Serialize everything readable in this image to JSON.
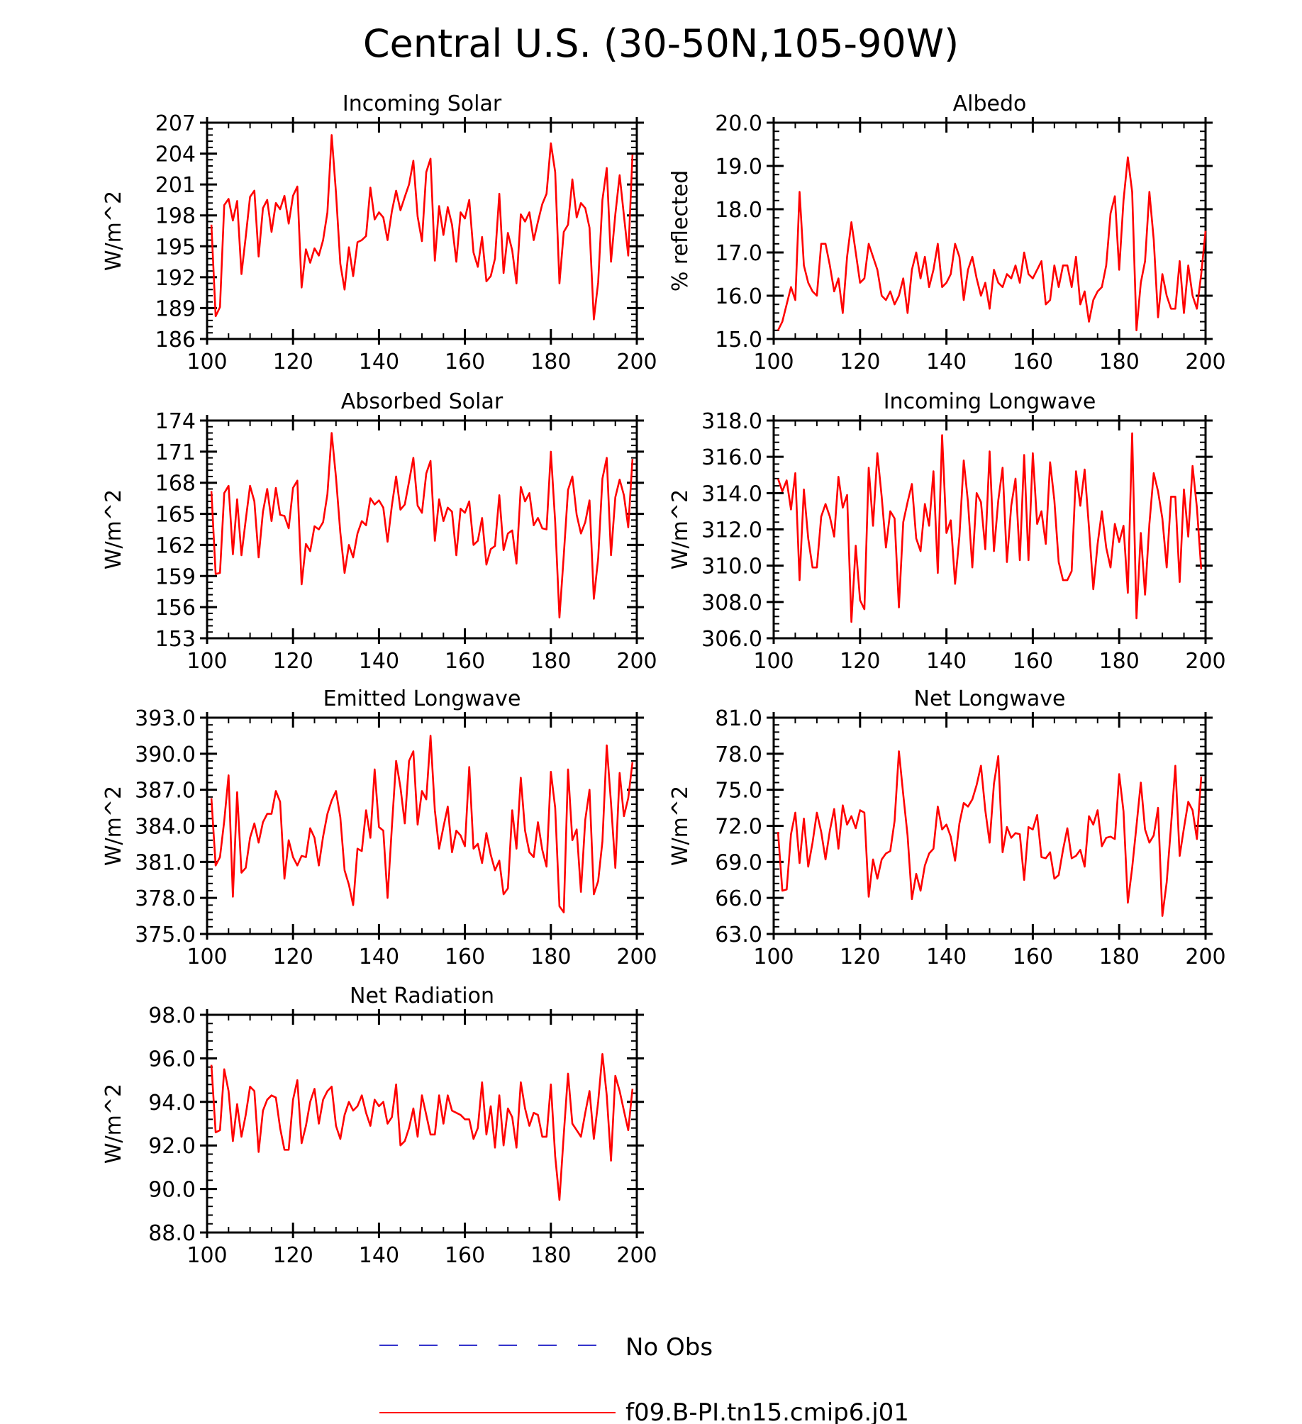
{
  "title": "Central U.S. (30-50N,105-90W)",
  "legend": [
    {
      "label": "No Obs",
      "color": "#3333cc",
      "style": "dashed"
    },
    {
      "label": "f09.B-PI.tn15.cmip6.j01",
      "color": "#ff0000",
      "style": "solid"
    }
  ],
  "chart_data": [
    {
      "type": "line",
      "title": "Incoming Solar",
      "ylabel": "W/m^2",
      "xlim": [
        100,
        200
      ],
      "ylim": [
        186,
        207
      ],
      "xticks": [
        "100",
        "120",
        "140",
        "160",
        "180",
        "200"
      ],
      "yticks": [
        "186",
        "189",
        "192",
        "195",
        "198",
        "201",
        "204",
        "207"
      ],
      "x_start": 101,
      "series": [
        {
          "name": "f09.B-PI.tn15.cmip6.j01",
          "color": "#ff0000",
          "values": [
            197.1,
            188.2,
            189.1,
            199.0,
            199.6,
            197.5,
            199.4,
            192.3,
            195.9,
            199.8,
            200.4,
            194.0,
            198.7,
            199.5,
            196.4,
            199.2,
            198.6,
            199.9,
            197.2,
            199.9,
            200.8,
            191.0,
            194.7,
            193.4,
            194.8,
            194.1,
            195.6,
            198.3,
            205.8,
            200.2,
            193.3,
            190.8,
            194.9,
            192.1,
            195.4,
            195.6,
            196.0,
            200.7,
            197.6,
            198.3,
            197.8,
            195.6,
            198.4,
            200.4,
            198.5,
            199.8,
            201.0,
            203.3,
            197.9,
            195.5,
            202.2,
            203.5,
            193.6,
            198.9,
            196.1,
            198.8,
            197.1,
            193.5,
            198.3,
            197.7,
            199.5,
            194.4,
            193.0,
            195.9,
            191.6,
            192.1,
            193.8,
            200.1,
            192.4,
            196.3,
            194.6,
            191.4,
            198.1,
            197.4,
            198.3,
            195.6,
            197.4,
            199.1,
            200.1,
            205.0,
            202.2,
            191.4,
            196.4,
            197.1,
            201.5,
            197.8,
            199.2,
            198.7,
            196.8,
            187.9,
            191.5,
            199.5,
            202.6,
            193.5,
            198.1,
            201.9,
            198.0,
            194.1,
            203.9
          ]
        }
      ]
    },
    {
      "type": "line",
      "title": "Albedo",
      "ylabel": "% reflected",
      "xlim": [
        100,
        200
      ],
      "ylim": [
        15.0,
        20.0
      ],
      "xticks": [
        "100",
        "120",
        "140",
        "160",
        "180",
        "200"
      ],
      "yticks": [
        "15.0",
        "16.0",
        "17.0",
        "18.0",
        "19.0",
        "20.0"
      ],
      "x_start": 101,
      "series": [
        {
          "name": "f09.B-PI.tn15.cmip6.j01",
          "color": "#ff0000",
          "values": [
            15.2,
            15.4,
            15.8,
            16.2,
            15.9,
            18.4,
            16.7,
            16.3,
            16.1,
            16.0,
            17.2,
            17.2,
            16.7,
            16.1,
            16.4,
            15.6,
            16.9,
            17.7,
            17.0,
            16.3,
            16.4,
            17.2,
            16.9,
            16.6,
            16.0,
            15.9,
            16.1,
            15.8,
            16.0,
            16.4,
            15.6,
            16.6,
            17.0,
            16.4,
            16.9,
            16.2,
            16.6,
            17.2,
            16.2,
            16.3,
            16.5,
            17.2,
            16.9,
            15.9,
            16.6,
            16.9,
            16.4,
            16.0,
            16.3,
            15.7,
            16.6,
            16.3,
            16.2,
            16.5,
            16.4,
            16.7,
            16.3,
            17.0,
            16.5,
            16.4,
            16.6,
            16.8,
            15.8,
            15.9,
            16.7,
            16.2,
            16.7,
            16.7,
            16.2,
            16.9,
            15.8,
            16.1,
            15.4,
            15.9,
            16.1,
            16.2,
            16.7,
            17.9,
            18.3,
            16.6,
            18.2,
            19.2,
            18.4,
            15.2,
            16.3,
            16.8,
            18.4,
            17.3,
            15.5,
            16.5,
            16.0,
            15.7,
            15.7,
            16.8,
            15.6,
            16.7,
            16.0,
            15.7,
            16.5,
            17.5
          ]
        }
      ]
    },
    {
      "type": "line",
      "title": "Absorbed Solar",
      "ylabel": "W/m^2",
      "xlim": [
        100,
        200
      ],
      "ylim": [
        153,
        174
      ],
      "xticks": [
        "100",
        "120",
        "140",
        "160",
        "180",
        "200"
      ],
      "yticks": [
        "153",
        "156",
        "159",
        "162",
        "165",
        "168",
        "171",
        "174"
      ],
      "x_start": 101,
      "series": [
        {
          "name": "f09.B-PI.tn15.cmip6.j01",
          "color": "#ff0000",
          "values": [
            167.2,
            159.2,
            159.3,
            167.0,
            167.7,
            161.1,
            166.4,
            161.0,
            164.4,
            167.7,
            166.2,
            160.8,
            165.2,
            167.4,
            164.3,
            167.5,
            164.9,
            164.8,
            163.6,
            167.5,
            168.2,
            158.2,
            162.1,
            161.4,
            163.8,
            163.5,
            164.2,
            166.9,
            172.8,
            168.5,
            163.2,
            159.3,
            162.0,
            160.8,
            163.1,
            164.3,
            163.9,
            166.5,
            165.9,
            166.3,
            165.6,
            162.3,
            165.8,
            168.6,
            165.4,
            165.9,
            168.1,
            170.4,
            165.8,
            165.1,
            168.9,
            170.1,
            162.4,
            166.4,
            164.3,
            165.6,
            165.2,
            161.0,
            165.5,
            165.1,
            166.2,
            162.0,
            162.4,
            164.6,
            160.1,
            161.6,
            161.9,
            166.8,
            161.5,
            163.1,
            163.4,
            160.2,
            167.6,
            166.2,
            167.0,
            163.9,
            164.6,
            163.6,
            163.5,
            171.0,
            164.2,
            155.0,
            161.0,
            167.3,
            168.6,
            164.9,
            163.1,
            164.2,
            166.3,
            156.8,
            160.7,
            168.4,
            170.4,
            161.0,
            166.6,
            168.3,
            166.8,
            163.7,
            170.3
          ]
        }
      ]
    },
    {
      "type": "line",
      "title": "Incoming Longwave",
      "ylabel": "W/m^2",
      "xlim": [
        100,
        200
      ],
      "ylim": [
        306.0,
        318.0
      ],
      "xticks": [
        "100",
        "120",
        "140",
        "160",
        "180",
        "200"
      ],
      "yticks": [
        "306.0",
        "308.0",
        "310.0",
        "312.0",
        "314.0",
        "316.0",
        "318.0"
      ],
      "x_start": 101,
      "series": [
        {
          "name": "f09.B-PI.tn15.cmip6.j01",
          "color": "#ff0000",
          "values": [
            314.8,
            314.1,
            314.7,
            313.1,
            315.1,
            309.2,
            314.2,
            311.5,
            309.9,
            309.9,
            312.7,
            313.4,
            312.7,
            311.6,
            314.9,
            313.2,
            313.9,
            306.9,
            311.1,
            308.1,
            307.6,
            315.4,
            312.2,
            316.2,
            313.8,
            311.0,
            313.0,
            312.6,
            307.7,
            312.4,
            313.5,
            314.5,
            311.5,
            310.8,
            313.4,
            312.2,
            315.2,
            309.6,
            317.2,
            311.8,
            312.5,
            309.0,
            311.6,
            315.8,
            313.5,
            309.9,
            314.0,
            313.5,
            310.9,
            316.3,
            310.8,
            313.6,
            315.4,
            310.2,
            313.3,
            314.8,
            310.3,
            316.1,
            310.3,
            316.2,
            312.3,
            313.0,
            311.2,
            315.7,
            313.6,
            310.2,
            309.2,
            309.2,
            309.7,
            315.2,
            313.3,
            315.3,
            312.1,
            308.7,
            311.2,
            313.0,
            311.0,
            309.9,
            312.3,
            311.3,
            312.2,
            308.5,
            317.3,
            307.1,
            311.8,
            308.4,
            312.3,
            315.1,
            314.1,
            312.6,
            309.9,
            313.8,
            313.8,
            309.1,
            314.2,
            311.6,
            315.5,
            313.2,
            309.8
          ]
        }
      ]
    },
    {
      "type": "line",
      "title": "Emitted Longwave",
      "ylabel": "W/m^2",
      "xlim": [
        100,
        200
      ],
      "ylim": [
        375.0,
        393.0
      ],
      "xticks": [
        "100",
        "120",
        "140",
        "160",
        "180",
        "200"
      ],
      "yticks": [
        "375.0",
        "378.0",
        "381.0",
        "384.0",
        "387.0",
        "390.0",
        "393.0"
      ],
      "x_start": 101,
      "series": [
        {
          "name": "f09.B-PI.tn15.cmip6.j01",
          "color": "#ff0000",
          "values": [
            386.3,
            380.7,
            381.4,
            384.4,
            388.2,
            378.1,
            386.8,
            380.1,
            380.5,
            383.0,
            384.2,
            382.6,
            384.3,
            385.0,
            385.0,
            386.9,
            386.0,
            379.6,
            382.8,
            381.4,
            380.7,
            381.5,
            381.4,
            383.8,
            383.0,
            380.7,
            383.1,
            385.0,
            386.1,
            386.9,
            384.7,
            380.3,
            379.1,
            377.4,
            382.1,
            381.9,
            385.3,
            383.0,
            388.7,
            383.9,
            383.6,
            378.0,
            383.9,
            389.4,
            387.2,
            384.2,
            389.4,
            390.2,
            384.1,
            386.9,
            386.2,
            391.5,
            385.3,
            382.1,
            383.9,
            385.6,
            381.8,
            383.6,
            383.2,
            382.3,
            388.9,
            382.1,
            382.5,
            380.9,
            383.4,
            381.6,
            380.3,
            381.1,
            378.3,
            378.8,
            385.3,
            382.1,
            388.0,
            383.6,
            381.8,
            381.4,
            384.3,
            382.0,
            380.6,
            388.5,
            385.5,
            377.3,
            376.8,
            388.7,
            382.8,
            383.7,
            378.5,
            384.5,
            387.0,
            378.3,
            379.4,
            382.7,
            390.7,
            385.9,
            380.5,
            388.4,
            384.8,
            386.3,
            389.3
          ]
        }
      ]
    },
    {
      "type": "line",
      "title": "Net Longwave",
      "ylabel": "W/m^2",
      "xlim": [
        100,
        200
      ],
      "ylim": [
        63.0,
        81.0
      ],
      "xticks": [
        "100",
        "120",
        "140",
        "160",
        "180",
        "200"
      ],
      "yticks": [
        "63.0",
        "66.0",
        "69.0",
        "72.0",
        "75.0",
        "78.0",
        "81.0"
      ],
      "x_start": 101,
      "series": [
        {
          "name": "f09.B-PI.tn15.cmip6.j01",
          "color": "#ff0000",
          "values": [
            71.5,
            66.6,
            66.7,
            71.3,
            73.1,
            68.9,
            72.6,
            68.6,
            70.6,
            73.1,
            71.5,
            69.2,
            71.6,
            73.4,
            70.1,
            73.7,
            72.1,
            72.8,
            71.8,
            73.3,
            73.1,
            66.1,
            69.2,
            67.6,
            69.2,
            69.7,
            69.9,
            72.4,
            78.2,
            74.6,
            71.2,
            65.9,
            68.0,
            66.6,
            68.7,
            69.7,
            70.1,
            73.6,
            71.7,
            72.1,
            71.1,
            69.1,
            72.2,
            73.9,
            73.6,
            74.2,
            75.4,
            77.0,
            73.3,
            70.6,
            75.5,
            77.8,
            69.8,
            71.9,
            71.0,
            71.4,
            71.3,
            67.5,
            71.9,
            71.7,
            72.9,
            69.4,
            69.3,
            69.8,
            67.6,
            67.9,
            70.0,
            71.8,
            69.3,
            69.5,
            70.0,
            68.6,
            72.8,
            72.1,
            73.3,
            70.3,
            71.0,
            71.1,
            70.9,
            76.3,
            73.2,
            65.6,
            68.5,
            72.0,
            75.6,
            71.7,
            70.6,
            71.2,
            73.5,
            64.5,
            67.3,
            72.0,
            77.0,
            69.5,
            71.8,
            74.0,
            73.3,
            70.9,
            76.1
          ]
        }
      ]
    },
    {
      "type": "line",
      "title": "Net Radiation",
      "ylabel": "W/m^2",
      "xlim": [
        100,
        200
      ],
      "ylim": [
        88.0,
        98.0
      ],
      "xticks": [
        "100",
        "120",
        "140",
        "160",
        "180",
        "200"
      ],
      "yticks": [
        "88.0",
        "90.0",
        "92.0",
        "94.0",
        "96.0",
        "98.0"
      ],
      "x_start": 101,
      "series": [
        {
          "name": "f09.B-PI.tn15.cmip6.j01",
          "color": "#ff0000",
          "values": [
            95.7,
            92.6,
            92.7,
            95.5,
            94.5,
            92.2,
            93.9,
            92.4,
            93.4,
            94.7,
            94.5,
            91.7,
            93.6,
            94.1,
            94.3,
            94.2,
            92.8,
            91.8,
            91.8,
            94.1,
            95.0,
            92.1,
            92.9,
            94.0,
            94.6,
            93.0,
            94.1,
            94.5,
            94.7,
            92.9,
            92.3,
            93.4,
            94.0,
            93.6,
            93.8,
            94.3,
            93.5,
            92.9,
            94.1,
            93.8,
            94.0,
            93.0,
            93.3,
            94.8,
            92.0,
            92.2,
            92.8,
            93.7,
            92.4,
            94.3,
            93.4,
            92.5,
            92.5,
            94.3,
            93.0,
            94.3,
            93.6,
            93.5,
            93.4,
            93.2,
            93.2,
            92.3,
            92.8,
            94.9,
            92.5,
            93.8,
            91.9,
            94.3,
            92.0,
            93.7,
            93.3,
            91.9,
            94.9,
            93.7,
            92.9,
            93.5,
            93.4,
            92.4,
            92.4,
            94.8,
            91.5,
            89.5,
            92.5,
            95.3,
            93.0,
            92.7,
            92.4,
            93.5,
            94.5,
            92.3,
            94.0,
            96.2,
            94.3,
            91.3,
            95.2,
            94.5,
            93.6,
            92.7,
            94.6
          ]
        }
      ]
    }
  ]
}
